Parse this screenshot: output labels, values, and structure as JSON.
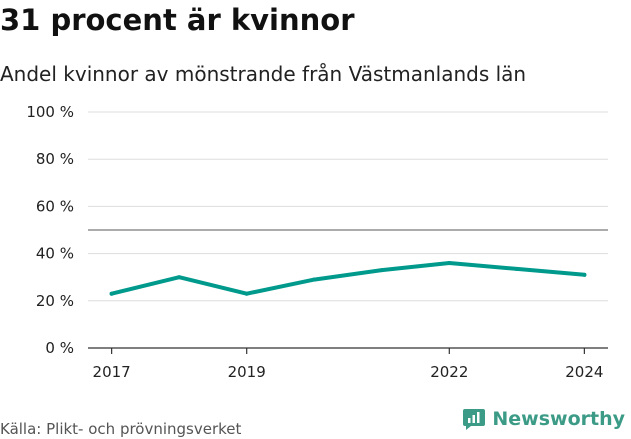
{
  "header": {
    "title": "31 procent är kvinnor",
    "subtitle": "Andel kvinnor av mönstrande från Västmanlands län"
  },
  "footer": {
    "source": "Källa: Plikt- och prövningsverket",
    "brand": "Newsworthy",
    "brand_icon": "newsworthy-logo-icon"
  },
  "colors": {
    "line": "#009a8d",
    "reference_line": "#7a7a7a",
    "grid": "#dddddd",
    "axis": "#333333",
    "brand": "#3b9b86"
  },
  "chart_data": {
    "type": "line",
    "title": "31 procent är kvinnor",
    "subtitle": "Andel kvinnor av mönstrande från Västmanlands län",
    "xlabel": "",
    "ylabel": "",
    "x": [
      2017,
      2018,
      2019,
      2020,
      2021,
      2022,
      2023,
      2024
    ],
    "x_tick_labels": [
      "2017",
      "2019",
      "2022",
      "2024"
    ],
    "x_tick_values": [
      2017,
      2019,
      2022,
      2024
    ],
    "y_tick_labels": [
      "0 %",
      "20 %",
      "40 %",
      "60 %",
      "80 %",
      "100 %"
    ],
    "y_tick_values": [
      0,
      20,
      40,
      60,
      80,
      100
    ],
    "ylim": [
      0,
      100
    ],
    "xlim": [
      2016.65,
      2024.35
    ],
    "reference_line": 50,
    "grid": true,
    "series": [
      {
        "name": "Andel kvinnor",
        "values": [
          23,
          30,
          23,
          29,
          33,
          36,
          33.5,
          31
        ]
      }
    ]
  }
}
